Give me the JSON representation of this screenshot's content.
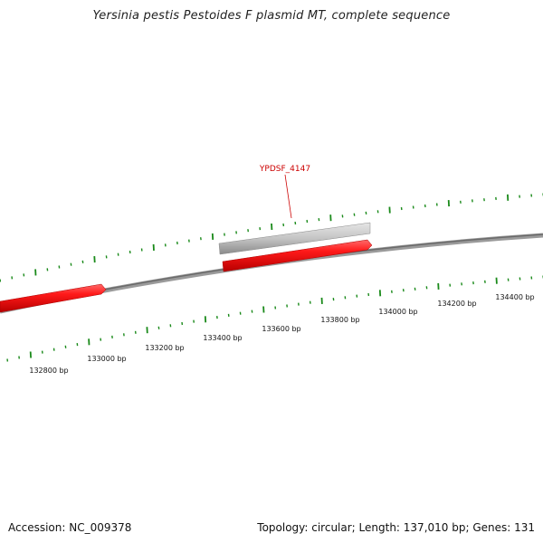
{
  "title": "Yersinia pestis Pestoides F plasmid MT, complete sequence",
  "footer": {
    "accession": "Accession: NC_009378",
    "summary": "Topology: circular; Length: 137,010 bp; Genes: 131"
  },
  "colors": {
    "backbone": "#808080",
    "tick": "#1a8a1a",
    "gene_forward": "#ee1111",
    "gene_highlight": "#bbbbbb",
    "gene_label": "#cc0000"
  },
  "scale_labels": [
    "132800 bp",
    "133000 bp",
    "133200 bp",
    "133400 bp",
    "133600 bp",
    "133800 bp",
    "134000 bp",
    "134200 bp",
    "134400 bp"
  ],
  "callout": {
    "label": "YPDSF_4147"
  }
}
